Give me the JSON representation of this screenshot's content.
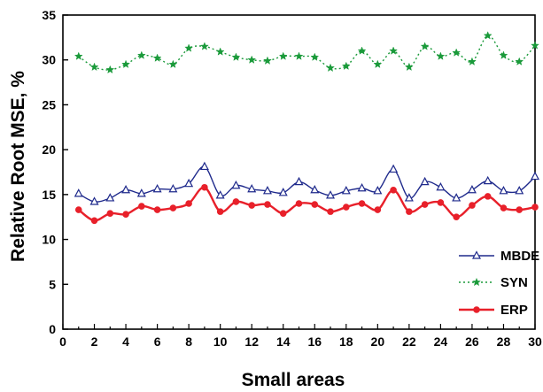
{
  "chart_data": {
    "type": "line",
    "xlabel": "Small areas",
    "ylabel": "Relative Root MSE, %",
    "xlim": [
      0,
      30
    ],
    "ylim": [
      0,
      35
    ],
    "xticks": [
      "0",
      "2",
      "4",
      "6",
      "8",
      "10",
      "12",
      "14",
      "16",
      "18",
      "20",
      "22",
      "24",
      "26",
      "28",
      "30"
    ],
    "yticks": [
      "0",
      "5",
      "10",
      "15",
      "20",
      "25",
      "30",
      "35"
    ],
    "x": [
      1,
      2,
      3,
      4,
      5,
      6,
      7,
      8,
      9,
      10,
      11,
      12,
      13,
      14,
      15,
      16,
      17,
      18,
      19,
      20,
      21,
      22,
      23,
      24,
      25,
      26,
      27,
      28,
      29,
      30
    ],
    "legend_position": "bottom-right",
    "grid": false,
    "series": [
      {
        "name": "MBDE",
        "color": "#1f2a8c",
        "marker": "triangle",
        "line_style": "solid",
        "values": [
          15.1,
          14.2,
          14.6,
          15.5,
          15.1,
          15.6,
          15.6,
          16.2,
          18.1,
          14.9,
          16.0,
          15.6,
          15.4,
          15.2,
          16.4,
          15.5,
          14.9,
          15.4,
          15.7,
          15.4,
          17.8,
          14.6,
          16.4,
          15.8,
          14.6,
          15.5,
          16.5,
          15.4,
          15.4,
          17.0
        ]
      },
      {
        "name": "SYN",
        "color": "#1a9a3a",
        "marker": "star",
        "line_style": "dotted",
        "values": [
          30.4,
          29.2,
          28.9,
          29.5,
          30.5,
          30.2,
          29.5,
          31.3,
          31.5,
          30.9,
          30.3,
          30.0,
          29.9,
          30.4,
          30.4,
          30.3,
          29.1,
          29.3,
          31.0,
          29.5,
          31.0,
          29.2,
          31.5,
          30.4,
          30.8,
          29.8,
          32.7,
          30.5,
          29.8,
          31.6
        ]
      },
      {
        "name": "ERP",
        "color": "#e8202a",
        "marker": "circle",
        "line_style": "solid",
        "values": [
          13.3,
          12.1,
          12.9,
          12.8,
          13.7,
          13.3,
          13.5,
          14.0,
          15.8,
          13.1,
          14.2,
          13.8,
          13.9,
          12.9,
          14.0,
          13.9,
          13.1,
          13.6,
          14.0,
          13.3,
          15.5,
          13.1,
          13.9,
          14.1,
          12.5,
          13.8,
          14.8,
          13.5,
          13.3,
          13.6
        ]
      }
    ]
  }
}
